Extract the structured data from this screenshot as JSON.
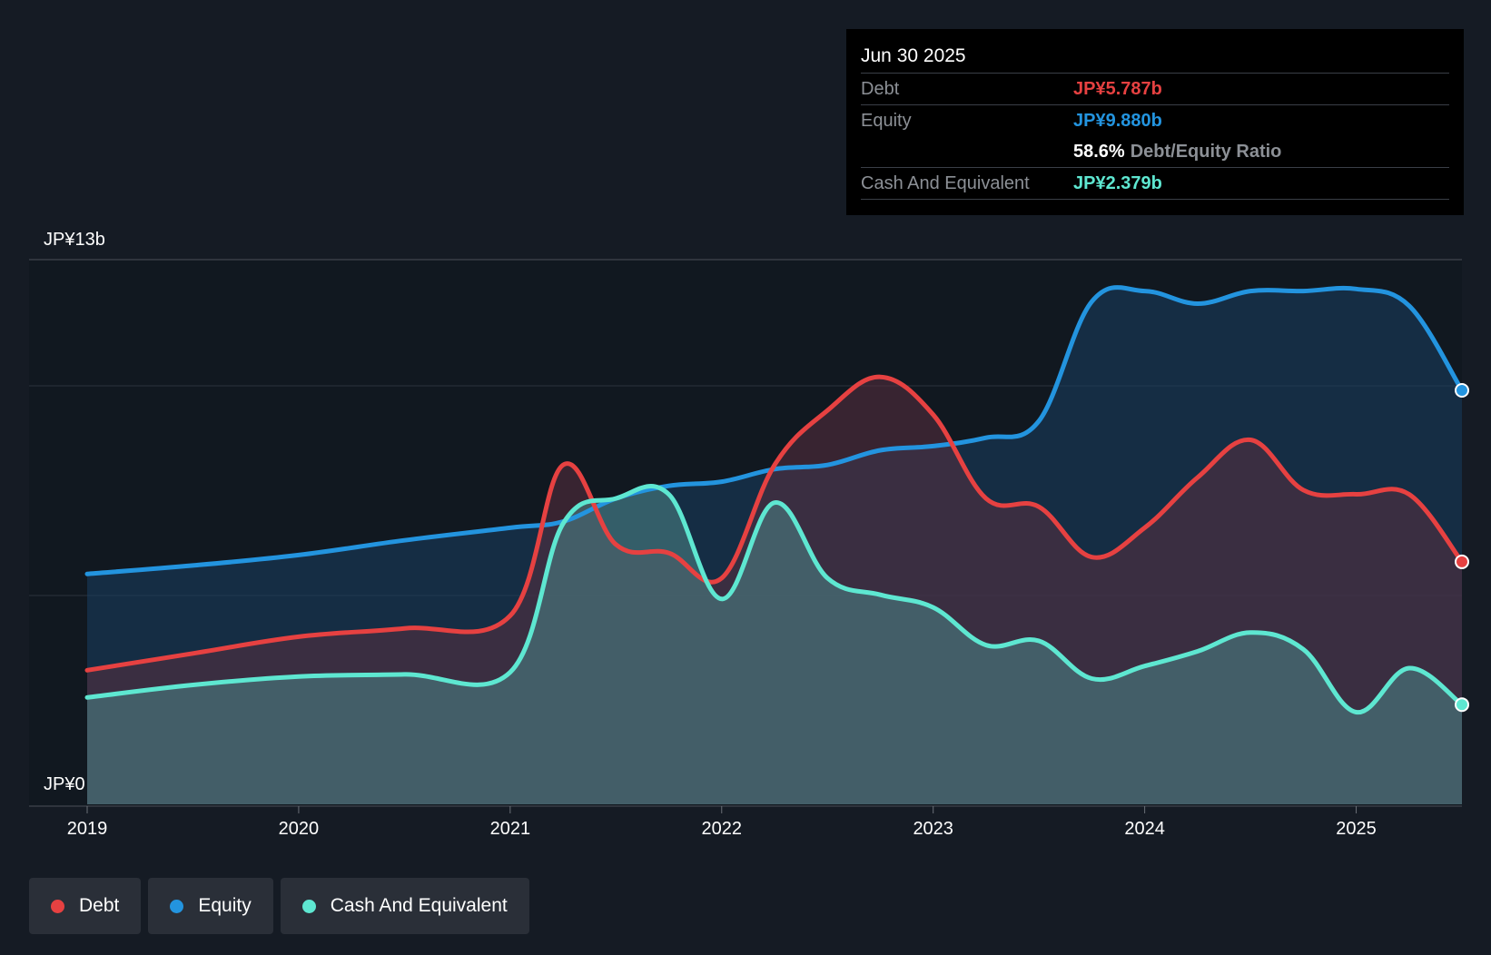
{
  "chart_data": {
    "type": "area",
    "y_axis": {
      "min": 0,
      "max": 13,
      "unit": "JP¥b",
      "top_label": "JP¥13b",
      "bottom_label": "JP¥0"
    },
    "x_axis": {
      "min": 2019.0,
      "max": 2025.5,
      "ticks": [
        "2019",
        "2020",
        "2021",
        "2022",
        "2023",
        "2024",
        "2025"
      ]
    },
    "series": [
      {
        "name": "Equity",
        "color": "#2394df",
        "points": [
          [
            2019.0,
            5.5
          ],
          [
            2019.5,
            5.7
          ],
          [
            2020.0,
            5.95
          ],
          [
            2020.5,
            6.3
          ],
          [
            2021.0,
            6.6
          ],
          [
            2021.25,
            6.75
          ],
          [
            2021.5,
            7.3
          ],
          [
            2021.75,
            7.6
          ],
          [
            2022.0,
            7.7
          ],
          [
            2022.25,
            8.0
          ],
          [
            2022.5,
            8.1
          ],
          [
            2022.75,
            8.45
          ],
          [
            2023.0,
            8.55
          ],
          [
            2023.25,
            8.75
          ],
          [
            2023.5,
            9.15
          ],
          [
            2023.75,
            12.0
          ],
          [
            2024.0,
            12.25
          ],
          [
            2024.25,
            11.95
          ],
          [
            2024.5,
            12.25
          ],
          [
            2024.75,
            12.25
          ],
          [
            2025.0,
            12.3
          ],
          [
            2025.25,
            11.9
          ],
          [
            2025.5,
            9.88
          ]
        ]
      },
      {
        "name": "Debt",
        "color": "#e64141",
        "points": [
          [
            2019.0,
            3.2
          ],
          [
            2019.5,
            3.6
          ],
          [
            2020.0,
            4.0
          ],
          [
            2020.5,
            4.2
          ],
          [
            2021.0,
            4.5
          ],
          [
            2021.25,
            8.1
          ],
          [
            2021.5,
            6.2
          ],
          [
            2021.75,
            6.0
          ],
          [
            2022.0,
            5.4
          ],
          [
            2022.25,
            8.1
          ],
          [
            2022.5,
            9.4
          ],
          [
            2022.75,
            10.2
          ],
          [
            2023.0,
            9.3
          ],
          [
            2023.25,
            7.3
          ],
          [
            2023.5,
            7.1
          ],
          [
            2023.75,
            5.9
          ],
          [
            2024.0,
            6.6
          ],
          [
            2024.25,
            7.8
          ],
          [
            2024.5,
            8.7
          ],
          [
            2024.75,
            7.5
          ],
          [
            2025.0,
            7.4
          ],
          [
            2025.25,
            7.4
          ],
          [
            2025.5,
            5.787
          ]
        ]
      },
      {
        "name": "Cash And Equivalent",
        "color": "#5ee7d1",
        "points": [
          [
            2019.0,
            2.55
          ],
          [
            2019.5,
            2.85
          ],
          [
            2020.0,
            3.05
          ],
          [
            2020.5,
            3.1
          ],
          [
            2021.0,
            3.15
          ],
          [
            2021.25,
            6.7
          ],
          [
            2021.5,
            7.3
          ],
          [
            2021.75,
            7.4
          ],
          [
            2022.0,
            4.9
          ],
          [
            2022.25,
            7.2
          ],
          [
            2022.5,
            5.4
          ],
          [
            2022.75,
            5.0
          ],
          [
            2023.0,
            4.7
          ],
          [
            2023.25,
            3.8
          ],
          [
            2023.5,
            3.9
          ],
          [
            2023.75,
            3.0
          ],
          [
            2024.0,
            3.3
          ],
          [
            2024.25,
            3.65
          ],
          [
            2024.5,
            4.1
          ],
          [
            2024.75,
            3.7
          ],
          [
            2025.0,
            2.2
          ],
          [
            2025.25,
            3.25
          ],
          [
            2025.5,
            2.379
          ]
        ]
      }
    ]
  },
  "tooltip": {
    "date": "Jun 30 2025",
    "debt_label": "Debt",
    "debt_value": "JP¥5.787b",
    "equity_label": "Equity",
    "equity_value": "JP¥9.880b",
    "ratio_value": "58.6%",
    "ratio_label": "Debt/Equity Ratio",
    "cash_label": "Cash And Equivalent",
    "cash_value": "JP¥2.379b"
  },
  "legend": [
    {
      "label": "Debt",
      "color": "#e64141"
    },
    {
      "label": "Equity",
      "color": "#2394df"
    },
    {
      "label": "Cash And Equivalent",
      "color": "#5ee7d1"
    }
  ],
  "colors": {
    "background": "#151b24",
    "plot_background": "#111820",
    "grid": "#3a3f47",
    "debt": "#e64141",
    "equity": "#2394df",
    "cash": "#5ee7d1"
  }
}
